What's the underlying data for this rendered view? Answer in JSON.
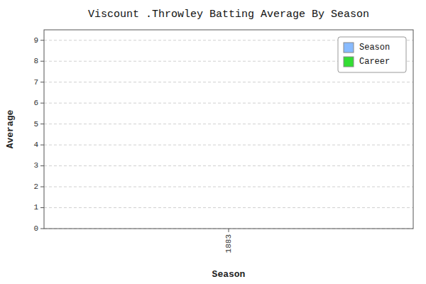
{
  "chart_data": {
    "type": "bar",
    "title": "Viscount .Throwley Batting Average By Season",
    "xlabel": "Season",
    "ylabel": "Average",
    "x": [],
    "series": [
      {
        "name": "Season",
        "color": "#88bbff",
        "values": []
      },
      {
        "name": "Career",
        "color": "#33dd33",
        "values": []
      }
    ],
    "xlim": [
      1882.5,
      1883.5
    ],
    "xticks": [
      1883
    ],
    "ylim": [
      0,
      9.5
    ],
    "yticks": [
      0,
      1,
      2,
      3,
      4,
      5,
      6,
      7,
      8,
      9
    ],
    "grid": true,
    "legend": "upper right"
  }
}
